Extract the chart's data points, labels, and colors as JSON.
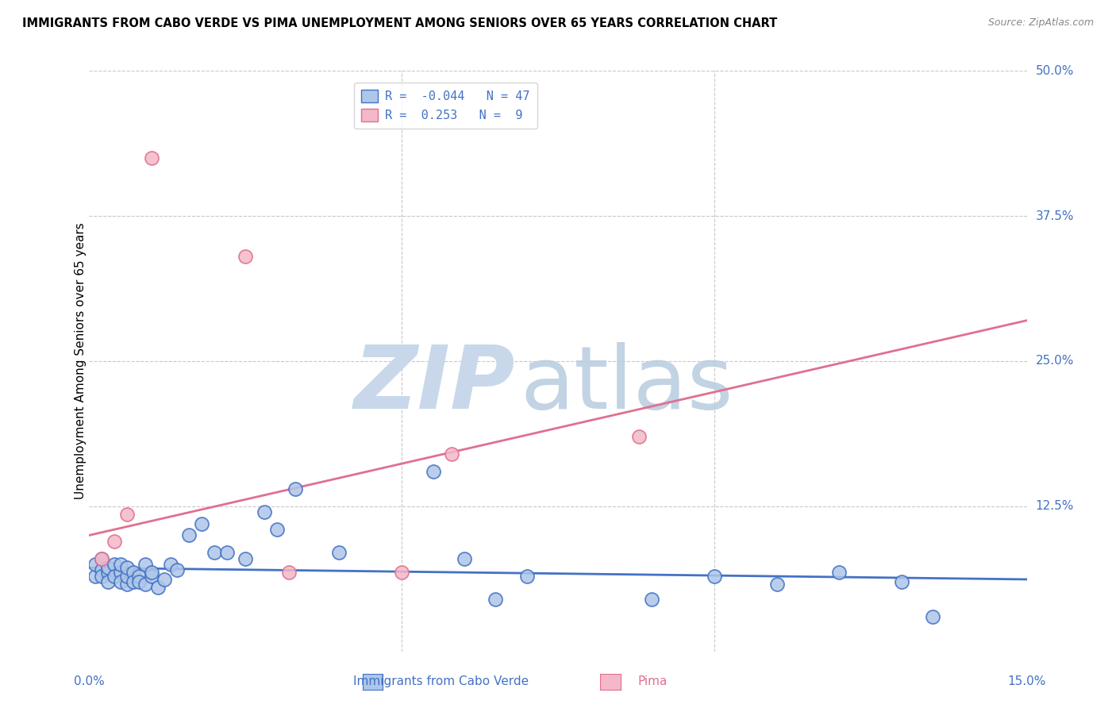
{
  "title": "IMMIGRANTS FROM CABO VERDE VS PIMA UNEMPLOYMENT AMONG SENIORS OVER 65 YEARS CORRELATION CHART",
  "source": "Source: ZipAtlas.com",
  "xlabel_blue": "Immigrants from Cabo Verde",
  "xlabel_pink": "Pima",
  "ylabel": "Unemployment Among Seniors over 65 years",
  "xlim": [
    0.0,
    0.15
  ],
  "ylim": [
    0.0,
    0.5
  ],
  "xticks": [
    0.0,
    0.05,
    0.1,
    0.15
  ],
  "yticks": [
    0.0,
    0.125,
    0.25,
    0.375,
    0.5
  ],
  "yticklabels": [
    "",
    "12.5%",
    "25.0%",
    "37.5%",
    "50.0%"
  ],
  "blue_R": -0.044,
  "blue_N": 47,
  "pink_R": 0.253,
  "pink_N": 9,
  "blue_color": "#aec6e8",
  "pink_color": "#f4b8c8",
  "blue_line_color": "#4472c4",
  "pink_line_color": "#e07090",
  "grid_color": "#c8c8c8",
  "blue_points_x": [
    0.001,
    0.001,
    0.002,
    0.002,
    0.002,
    0.003,
    0.003,
    0.003,
    0.004,
    0.004,
    0.005,
    0.005,
    0.005,
    0.006,
    0.006,
    0.006,
    0.007,
    0.007,
    0.008,
    0.008,
    0.009,
    0.009,
    0.01,
    0.01,
    0.011,
    0.012,
    0.013,
    0.014,
    0.016,
    0.018,
    0.02,
    0.022,
    0.025,
    0.028,
    0.03,
    0.033,
    0.04,
    0.055,
    0.06,
    0.065,
    0.07,
    0.09,
    0.1,
    0.11,
    0.12,
    0.13,
    0.135
  ],
  "blue_points_y": [
    0.065,
    0.075,
    0.07,
    0.08,
    0.065,
    0.068,
    0.072,
    0.06,
    0.075,
    0.065,
    0.068,
    0.075,
    0.06,
    0.058,
    0.065,
    0.072,
    0.068,
    0.06,
    0.065,
    0.06,
    0.075,
    0.058,
    0.065,
    0.068,
    0.055,
    0.062,
    0.075,
    0.07,
    0.1,
    0.11,
    0.085,
    0.085,
    0.08,
    0.12,
    0.105,
    0.14,
    0.085,
    0.155,
    0.08,
    0.045,
    0.065,
    0.045,
    0.065,
    0.058,
    0.068,
    0.06,
    0.03
  ],
  "pink_points_x": [
    0.002,
    0.004,
    0.006,
    0.01,
    0.025,
    0.032,
    0.05,
    0.058,
    0.088
  ],
  "pink_points_y": [
    0.08,
    0.095,
    0.118,
    0.425,
    0.34,
    0.068,
    0.068,
    0.17,
    0.185
  ],
  "blue_trend_x": [
    0.0,
    0.15
  ],
  "blue_trend_y": [
    0.072,
    0.062
  ],
  "pink_trend_x": [
    0.0,
    0.15
  ],
  "pink_trend_y": [
    0.1,
    0.285
  ]
}
